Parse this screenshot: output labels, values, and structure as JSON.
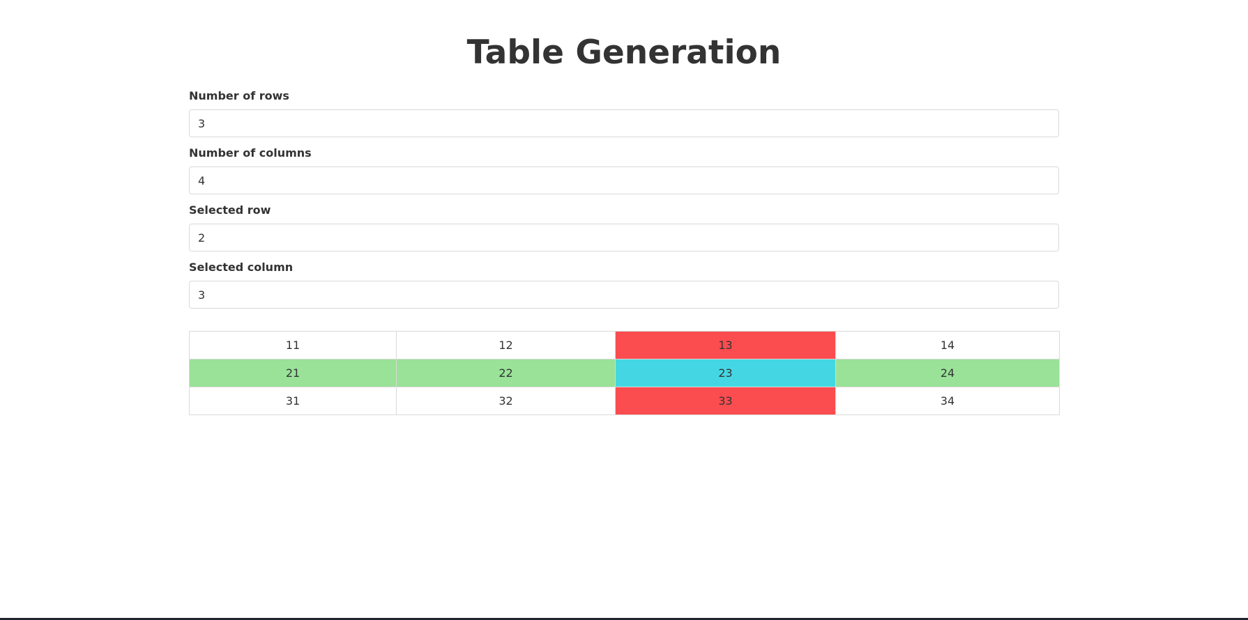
{
  "title": "Table Generation",
  "fields": {
    "rows": {
      "label": "Number of rows",
      "value": "3"
    },
    "columns": {
      "label": "Number of columns",
      "value": "4"
    },
    "selected_row": {
      "label": "Selected row",
      "value": "2"
    },
    "selected_column": {
      "label": "Selected column",
      "value": "3"
    }
  },
  "colors": {
    "selected_row": "#99e298",
    "selected_column": "#fb4c4f",
    "selected_cell": "#44d7e3"
  },
  "table": {
    "rows": [
      [
        "11",
        "12",
        "13",
        "14"
      ],
      [
        "21",
        "22",
        "23",
        "24"
      ],
      [
        "31",
        "32",
        "33",
        "34"
      ]
    ]
  }
}
